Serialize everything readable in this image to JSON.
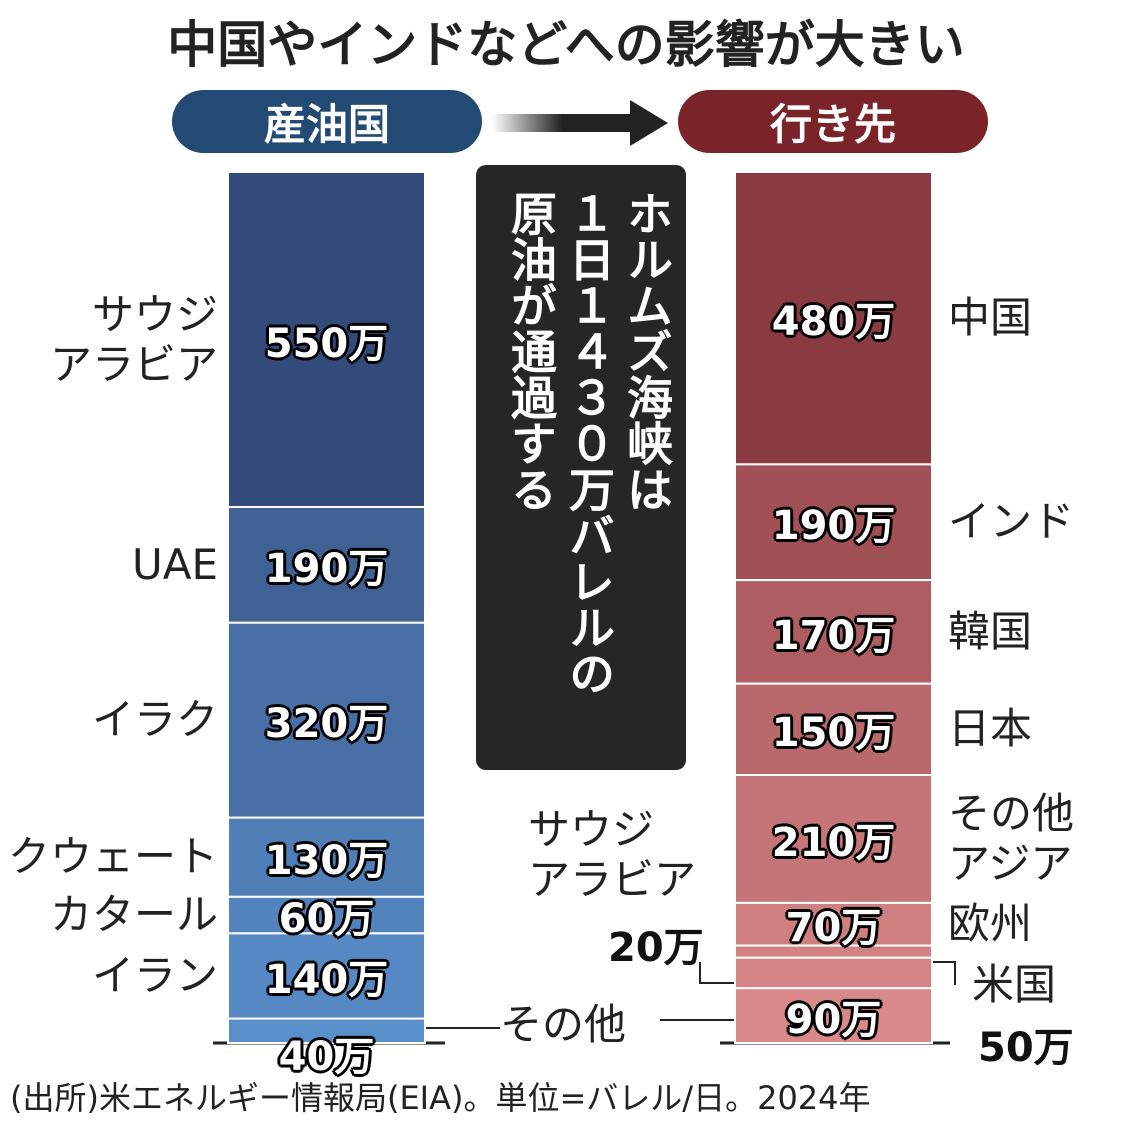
{
  "title": "中国やインドなどへの影響が大きい",
  "note": "ホルムズ海峡は\n１日１４３０万バレルの\n原油が通過する",
  "source": "(出所)米エネルギー情報局(EIA)。単位=バレル/日。2024年",
  "chart_data": [
    {
      "type": "stacked-bar",
      "header": "産油国",
      "header_color": "#234a75",
      "color_top": "#2a3a66",
      "color_bottom": "#5a90cc",
      "categories": [
        "サウジ\nアラビア",
        "UAE",
        "イラク",
        "クウェート",
        "カタール",
        "イラン",
        "その他"
      ],
      "values": [
        550,
        190,
        320,
        130,
        60,
        140,
        40
      ],
      "value_labels": [
        "550万",
        "190万",
        "320万",
        "130万",
        "60万",
        "140万",
        "40万"
      ]
    },
    {
      "type": "stacked-bar",
      "header": "行き先",
      "header_color": "#7a2429",
      "color_top": "#7a2a32",
      "color_bottom": "#dc8c8c",
      "categories": [
        "中国",
        "インド",
        "韓国",
        "日本",
        "その他\nアジア",
        "欧州",
        "サウジ\nアラビア",
        "米国",
        null
      ],
      "values": [
        480,
        190,
        170,
        150,
        210,
        70,
        20,
        50,
        90
      ],
      "value_labels": [
        "480万",
        "190万",
        "170万",
        "150万",
        "210万",
        "70万",
        "20万",
        "50万",
        "90万"
      ]
    }
  ]
}
